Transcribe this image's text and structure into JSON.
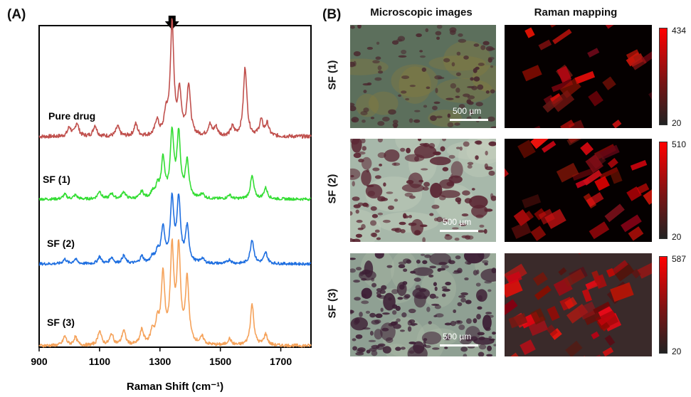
{
  "panel_a": {
    "label": "(A)",
    "arrow_at": 1340
  },
  "panel_b": {
    "label": "(B)",
    "col_micro": "Microscopic images",
    "col_raman": "Raman mapping",
    "scalebar": "500 µm",
    "rows": [
      {
        "label": "SF (1)",
        "cbar_max": "434",
        "cbar_min": "20",
        "density": 0.25,
        "micro_colors": {
          "base": "#5c6f5c",
          "spot": "#4a2a30",
          "tint": "#8a7a3a"
        }
      },
      {
        "label": "SF (2)",
        "cbar_max": "510",
        "cbar_min": "20",
        "density": 0.45,
        "micro_colors": {
          "base": "#a7b8aa",
          "spot": "#5a2532",
          "tint": "#c8d0c0"
        }
      },
      {
        "label": "SF (3)",
        "cbar_max": "587",
        "cbar_min": "20",
        "density": 0.75,
        "micro_colors": {
          "base": "#8fa093",
          "spot": "#3d1f35",
          "tint": "#b0bca8"
        }
      }
    ]
  },
  "chart_data": {
    "type": "line",
    "xlabel": "Raman Shift (cm⁻¹)",
    "ylabel": "",
    "xlim": [
      900,
      1800
    ],
    "xticks": [
      900,
      1100,
      1300,
      1500,
      1700
    ],
    "y_ticks_shown": false,
    "series": [
      {
        "name": "Pure drug",
        "color": "#c0504d",
        "baseline": 0.0,
        "peaks": [
          [
            1000,
            0.08
          ],
          [
            1025,
            0.12
          ],
          [
            1085,
            0.1
          ],
          [
            1160,
            0.09
          ],
          [
            1220,
            0.11
          ],
          [
            1290,
            0.14
          ],
          [
            1320,
            0.18
          ],
          [
            1340,
            1.0
          ],
          [
            1365,
            0.38
          ],
          [
            1395,
            0.46
          ],
          [
            1465,
            0.1
          ],
          [
            1485,
            0.08
          ],
          [
            1540,
            0.08
          ],
          [
            1582,
            0.62
          ],
          [
            1635,
            0.14
          ],
          [
            1655,
            0.11
          ]
        ]
      },
      {
        "name": "SF (1)",
        "color": "#33dd33",
        "baseline": 0.0,
        "peaks": [
          [
            985,
            0.06
          ],
          [
            1020,
            0.05
          ],
          [
            1100,
            0.1
          ],
          [
            1140,
            0.07
          ],
          [
            1180,
            0.09
          ],
          [
            1240,
            0.09
          ],
          [
            1275,
            0.07
          ],
          [
            1292,
            0.14
          ],
          [
            1310,
            0.49
          ],
          [
            1340,
            0.82
          ],
          [
            1362,
            0.8
          ],
          [
            1390,
            0.46
          ],
          [
            1440,
            0.06
          ],
          [
            1530,
            0.05
          ],
          [
            1605,
            0.29
          ],
          [
            1650,
            0.14
          ]
        ]
      },
      {
        "name": "SF (2)",
        "color": "#1f6fe0",
        "baseline": 0.0,
        "peaks": [
          [
            985,
            0.06
          ],
          [
            1020,
            0.06
          ],
          [
            1100,
            0.09
          ],
          [
            1140,
            0.08
          ],
          [
            1180,
            0.1
          ],
          [
            1240,
            0.09
          ],
          [
            1275,
            0.07
          ],
          [
            1292,
            0.14
          ],
          [
            1310,
            0.44
          ],
          [
            1340,
            0.79
          ],
          [
            1362,
            0.79
          ],
          [
            1390,
            0.45
          ],
          [
            1440,
            0.06
          ],
          [
            1530,
            0.05
          ],
          [
            1605,
            0.31
          ],
          [
            1650,
            0.14
          ]
        ]
      },
      {
        "name": "SF (3)",
        "color": "#f5a25a",
        "baseline": 0.0,
        "peaks": [
          [
            985,
            0.1
          ],
          [
            1020,
            0.09
          ],
          [
            1100,
            0.16
          ],
          [
            1140,
            0.12
          ],
          [
            1180,
            0.16
          ],
          [
            1240,
            0.16
          ],
          [
            1275,
            0.14
          ],
          [
            1292,
            0.22
          ],
          [
            1310,
            0.74
          ],
          [
            1340,
            1.02
          ],
          [
            1362,
            1.02
          ],
          [
            1390,
            0.7
          ],
          [
            1440,
            0.08
          ],
          [
            1530,
            0.07
          ],
          [
            1605,
            0.45
          ],
          [
            1650,
            0.12
          ]
        ]
      }
    ]
  }
}
